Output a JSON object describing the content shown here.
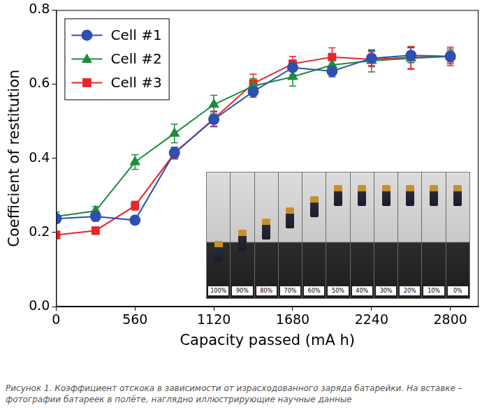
{
  "chart_data": {
    "type": "line",
    "x_label": "Capacity passed (mA h)",
    "y_label": "Coefficient of restitution",
    "x": [
      0,
      280,
      560,
      840,
      1120,
      1400,
      1680,
      1960,
      2240,
      2520,
      2800
    ],
    "series": [
      {
        "name": "Cell #1",
        "color": "#2f4fb0",
        "marker": "circle",
        "values": [
          0.237,
          0.243,
          0.233,
          0.415,
          0.505,
          0.58,
          0.645,
          0.635,
          0.67,
          0.678,
          0.675
        ],
        "errors": [
          0.012,
          0.012,
          0.01,
          0.015,
          0.02,
          0.015,
          0.02,
          0.015,
          0.02,
          0.02,
          0.015
        ]
      },
      {
        "name": "Cell #2",
        "color": "#1e8c3a",
        "marker": "triangle",
        "values": [
          0.243,
          0.258,
          0.39,
          0.467,
          0.545,
          0.595,
          0.62,
          0.652,
          0.663,
          0.67,
          0.675
        ],
        "errors": [
          0.012,
          0.012,
          0.02,
          0.025,
          0.025,
          0.02,
          0.025,
          0.025,
          0.03,
          0.03,
          0.02
        ]
      },
      {
        "name": "Cell #3",
        "color": "#e8262a",
        "marker": "square",
        "values": [
          0.193,
          0.205,
          0.272,
          0.413,
          0.507,
          0.602,
          0.655,
          0.673,
          0.667,
          0.672,
          0.675
        ],
        "errors": [
          0.01,
          0.01,
          0.012,
          0.015,
          0.02,
          0.025,
          0.02,
          0.025,
          0.02,
          0.03,
          0.025
        ]
      }
    ],
    "xlim": [
      0,
      3000
    ],
    "xticks": [
      0,
      560,
      1120,
      1680,
      2240,
      2800
    ],
    "ylim": [
      0,
      0.8
    ],
    "yticks": [
      {
        "value": 0,
        "label": "0.0"
      },
      {
        "value": 0.2,
        "label": "0.2"
      },
      {
        "value": 0.4,
        "label": "0.4"
      },
      {
        "value": 0.6,
        "label": "0.6"
      },
      {
        "value": 0.8,
        "label": "0.8"
      }
    ],
    "grid": false,
    "legend": "upper left",
    "annotations": [
      "100%",
      "90%",
      "80%",
      "70%",
      "60%",
      "50%",
      "40%",
      "30%",
      "20%",
      "10%",
      "0%"
    ],
    "caption": "Рисунок 1. Коэффициент отскока в зависимости от израсходованного заряда батарейки. На вставке – фотографии батареек в полёте, наглядно иллюстрирующие научные данные"
  }
}
